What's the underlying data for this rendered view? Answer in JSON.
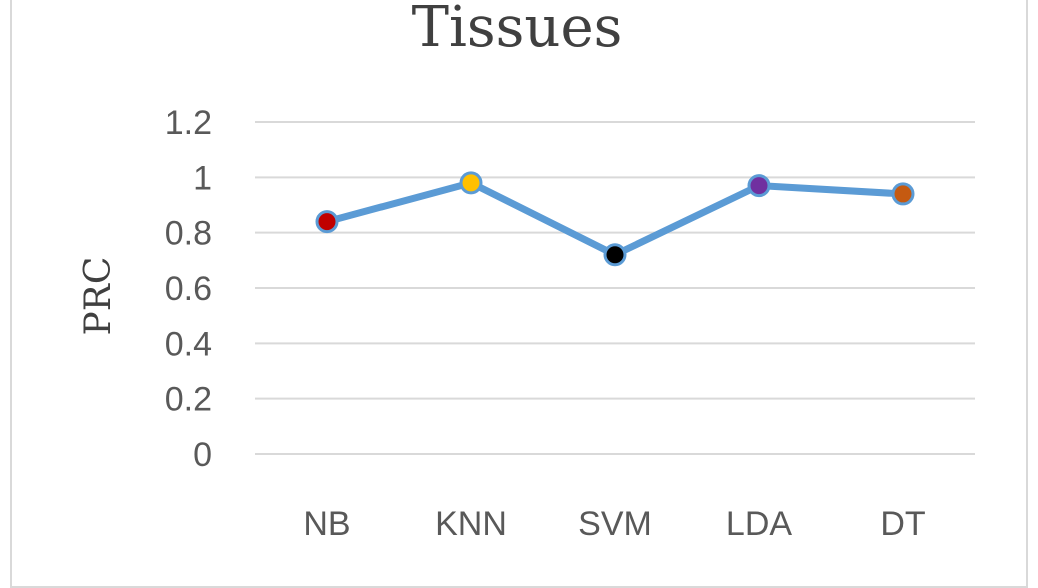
{
  "chart_data": {
    "type": "line",
    "title": "Tissues",
    "ylabel": "PRC",
    "xlabel": "",
    "categories": [
      "NB",
      "KNN",
      "SVM",
      "LDA",
      "DT"
    ],
    "series": [
      {
        "values": [
          0.84,
          0.98,
          0.72,
          0.97,
          0.94
        ],
        "color": "#5b9bd5",
        "marker_colors": [
          "#c00000",
          "#ffc000",
          "#000000",
          "#7030a0",
          "#c55a11"
        ]
      }
    ],
    "ylim": [
      0,
      1.2
    ],
    "yticks": [
      "0",
      "0.2",
      "0.4",
      "0.6",
      "0.8",
      "1",
      "1.2"
    ],
    "grid": true,
    "legend": "none"
  }
}
